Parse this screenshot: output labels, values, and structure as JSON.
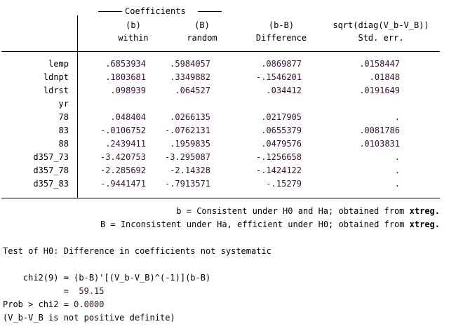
{
  "header": {
    "group_title": "Coefficients",
    "columns": [
      {
        "top": "(b)",
        "bottom": "within"
      },
      {
        "top": "(B)",
        "bottom": "random"
      },
      {
        "top": "(b-B)",
        "bottom": "Difference"
      },
      {
        "top": "sqrt(diag(V_b-V_B))",
        "bottom": "Std. err."
      }
    ]
  },
  "rows": [
    {
      "name": "lemp",
      "b": ".6853934",
      "B": ".5984057",
      "diff": ".0869877",
      "se": ".0158447"
    },
    {
      "name": "ldnpt",
      "b": ".1803681",
      "B": ".3349882",
      "diff": "-.1546201",
      "se": ".01848"
    },
    {
      "name": "ldrst",
      "b": ".098939",
      "B": ".064527",
      "diff": ".034412",
      "se": ".0191649"
    },
    {
      "name": "yr",
      "b": "",
      "B": "",
      "diff": "",
      "se": ""
    },
    {
      "name": "78",
      "b": ".048404",
      "B": ".0266135",
      "diff": ".0217905",
      "se": "."
    },
    {
      "name": "83",
      "b": "-.0106752",
      "B": "-.0762131",
      "diff": ".0655379",
      "se": ".0081786"
    },
    {
      "name": "88",
      "b": ".2439411",
      "B": ".1959835",
      "diff": ".0479576",
      "se": ".0103831"
    },
    {
      "name": "d357_73",
      "b": "-3.420753",
      "B": "-3.295087",
      "diff": "-.1256658",
      "se": "."
    },
    {
      "name": "d357_78",
      "b": "-2.285692",
      "B": "-2.14328",
      "diff": "-.1424122",
      "se": "."
    },
    {
      "name": "d357_83",
      "b": "-.9441471",
      "B": "-.7913571",
      "diff": "-.15279",
      "se": "."
    }
  ],
  "notes": {
    "line1_text": "b = Consistent under H0 and Ha; obtained from ",
    "line1_cmd": "xtreg.",
    "line2_text": "B = Inconsistent under Ha, efficient under H0; obtained from ",
    "line2_cmd": "xtreg."
  },
  "test": {
    "heading": "Test of H0: Difference in coefficients not systematic",
    "chi_formula": "    chi2(9) = (b-B)'[(V_b-V_B)^(-1)](b-B)",
    "chi_eq": "            =  ",
    "chi_value": "59.15",
    "prob_label": "Prob > chi2 = ",
    "prob_value": "0.0000",
    "note": "(V_b-V_B is not positive definite)"
  },
  "colors": {
    "numbers": "#3a0f38",
    "text": "#000000",
    "background": "#ffffff"
  }
}
